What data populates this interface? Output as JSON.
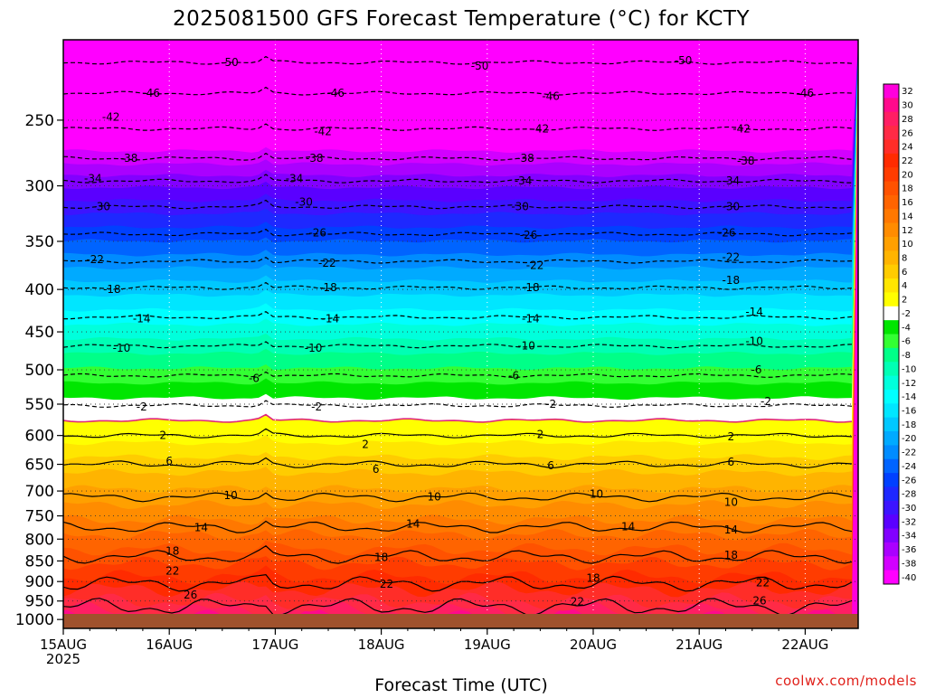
{
  "chart_data": {
    "type": "heatmap",
    "title": "2025081500 GFS Forecast Temperature (°C) for KCTY",
    "xlabel": "Forecast Time (UTC)",
    "ylabel": "",
    "x_start_label": [
      "15AUG",
      "2025"
    ],
    "x_ticks": [
      "15AUG",
      "16AUG",
      "17AUG",
      "18AUG",
      "19AUG",
      "20AUG",
      "21AUG",
      "22AUG"
    ],
    "x_range_days": [
      0,
      7.5
    ],
    "y_scale": "log",
    "y_axis": "pressure (hPa), increasing downward",
    "y_ticks": [
      250,
      300,
      350,
      400,
      450,
      500,
      550,
      600,
      650,
      700,
      750,
      800,
      850,
      900,
      950,
      1000
    ],
    "y_range": [
      200,
      1025
    ],
    "colorbar": {
      "levels": [
        32,
        30,
        28,
        26,
        24,
        22,
        20,
        18,
        16,
        14,
        12,
        10,
        8,
        6,
        4,
        2,
        -2,
        -4,
        -6,
        -8,
        -10,
        -12,
        -14,
        -16,
        -18,
        -20,
        -22,
        -24,
        -26,
        -28,
        -30,
        -32,
        -34,
        -36,
        -38,
        -40
      ],
      "colors": [
        "#ff00dc",
        "#ff0a8c",
        "#ff1e64",
        "#ff2a46",
        "#ff2d28",
        "#ff2b00",
        "#ff3c00",
        "#ff5200",
        "#ff6400",
        "#ff7800",
        "#ff8c00",
        "#ffa000",
        "#ffb400",
        "#ffcc00",
        "#ffe600",
        "#ffff00",
        "#ffffff",
        "#00e600",
        "#33ff33",
        "#00ff88",
        "#00ffb4",
        "#00ffdc",
        "#00ffff",
        "#00e6ff",
        "#00c8ff",
        "#00aaff",
        "#008cff",
        "#0064ff",
        "#0040ff",
        "#1e28ff",
        "#3c14ff",
        "#5a00ff",
        "#8200ff",
        "#aa00ff",
        "#d200ff",
        "#ff00ff"
      ]
    },
    "surface_color": "#a0522d",
    "isotherm_labels": [
      {
        "value": "-50",
        "day": 1.57,
        "p": 213
      },
      {
        "value": "-50",
        "day": 3.93,
        "p": 215
      },
      {
        "value": "-50",
        "day": 5.85,
        "p": 212
      },
      {
        "value": "-46",
        "day": 0.83,
        "p": 232
      },
      {
        "value": "-46",
        "day": 2.57,
        "p": 232
      },
      {
        "value": "-46",
        "day": 4.6,
        "p": 234
      },
      {
        "value": "-46",
        "day": 7.0,
        "p": 232
      },
      {
        "value": "-42",
        "day": 0.45,
        "p": 248
      },
      {
        "value": "-42",
        "day": 2.45,
        "p": 258
      },
      {
        "value": "-42",
        "day": 4.5,
        "p": 256
      },
      {
        "value": "-42",
        "day": 6.4,
        "p": 256
      },
      {
        "value": "-38",
        "day": 0.62,
        "p": 278
      },
      {
        "value": "-38",
        "day": 2.37,
        "p": 278
      },
      {
        "value": "-38",
        "day": 4.36,
        "p": 278
      },
      {
        "value": "-38",
        "day": 6.44,
        "p": 280
      },
      {
        "value": "-34",
        "day": 0.28,
        "p": 294
      },
      {
        "value": "-34",
        "day": 2.18,
        "p": 294
      },
      {
        "value": "-34",
        "day": 4.34,
        "p": 296
      },
      {
        "value": "-34",
        "day": 6.3,
        "p": 296
      },
      {
        "value": "-30",
        "day": 0.36,
        "p": 318
      },
      {
        "value": "-30",
        "day": 2.27,
        "p": 314
      },
      {
        "value": "-30",
        "day": 4.31,
        "p": 318
      },
      {
        "value": "-30",
        "day": 6.3,
        "p": 318
      },
      {
        "value": "-26",
        "day": 2.4,
        "p": 342
      },
      {
        "value": "-26",
        "day": 4.39,
        "p": 344
      },
      {
        "value": "-26",
        "day": 6.26,
        "p": 342
      },
      {
        "value": "-22",
        "day": 0.3,
        "p": 368
      },
      {
        "value": "-22",
        "day": 2.49,
        "p": 372
      },
      {
        "value": "-22",
        "day": 4.45,
        "p": 374
      },
      {
        "value": "-22",
        "day": 6.3,
        "p": 366
      },
      {
        "value": "-18",
        "day": 0.46,
        "p": 400
      },
      {
        "value": "-18",
        "day": 2.5,
        "p": 398
      },
      {
        "value": "-18",
        "day": 4.41,
        "p": 398
      },
      {
        "value": "-18",
        "day": 6.3,
        "p": 390
      },
      {
        "value": "-14",
        "day": 0.74,
        "p": 434
      },
      {
        "value": "-14",
        "day": 2.52,
        "p": 434
      },
      {
        "value": "-14",
        "day": 4.41,
        "p": 434
      },
      {
        "value": "-14",
        "day": 6.52,
        "p": 426
      },
      {
        "value": "-10",
        "day": 0.55,
        "p": 471
      },
      {
        "value": "-10",
        "day": 2.36,
        "p": 471
      },
      {
        "value": "-10",
        "day": 4.37,
        "p": 468
      },
      {
        "value": "-10",
        "day": 6.52,
        "p": 462
      },
      {
        "value": "-6",
        "day": 1.8,
        "p": 512
      },
      {
        "value": "-6",
        "day": 4.25,
        "p": 508
      },
      {
        "value": "-6",
        "day": 6.54,
        "p": 500
      },
      {
        "value": "-2",
        "day": 0.74,
        "p": 554
      },
      {
        "value": "-2",
        "day": 2.39,
        "p": 554
      },
      {
        "value": "-2",
        "day": 4.6,
        "p": 550
      },
      {
        "value": "-2",
        "day": 6.63,
        "p": 546
      },
      {
        "value": "2",
        "day": 0.94,
        "p": 600
      },
      {
        "value": "2",
        "day": 2.85,
        "p": 615
      },
      {
        "value": "2",
        "day": 4.5,
        "p": 598
      },
      {
        "value": "2",
        "day": 6.3,
        "p": 602
      },
      {
        "value": "6",
        "day": 1.0,
        "p": 644
      },
      {
        "value": "6",
        "day": 2.95,
        "p": 659
      },
      {
        "value": "6",
        "day": 4.6,
        "p": 652
      },
      {
        "value": "6",
        "day": 6.3,
        "p": 646
      },
      {
        "value": "10",
        "day": 1.58,
        "p": 709
      },
      {
        "value": "10",
        "day": 3.5,
        "p": 711
      },
      {
        "value": "10",
        "day": 5.03,
        "p": 706
      },
      {
        "value": "10",
        "day": 6.3,
        "p": 722
      },
      {
        "value": "14",
        "day": 1.3,
        "p": 775
      },
      {
        "value": "14",
        "day": 3.3,
        "p": 767
      },
      {
        "value": "14",
        "day": 5.33,
        "p": 773
      },
      {
        "value": "14",
        "day": 6.3,
        "p": 780
      },
      {
        "value": "18",
        "day": 1.03,
        "p": 827
      },
      {
        "value": "18",
        "day": 3.0,
        "p": 842
      },
      {
        "value": "18",
        "day": 5.0,
        "p": 892
      },
      {
        "value": "18",
        "day": 6.3,
        "p": 836
      },
      {
        "value": "22",
        "day": 1.03,
        "p": 874
      },
      {
        "value": "22",
        "day": 3.05,
        "p": 906
      },
      {
        "value": "22",
        "day": 4.85,
        "p": 952
      },
      {
        "value": "22",
        "day": 6.6,
        "p": 903
      },
      {
        "value": "26",
        "day": 1.2,
        "p": 934
      },
      {
        "value": "26",
        "day": 6.57,
        "p": 949
      }
    ]
  },
  "watermark": "coolwx.com/models"
}
